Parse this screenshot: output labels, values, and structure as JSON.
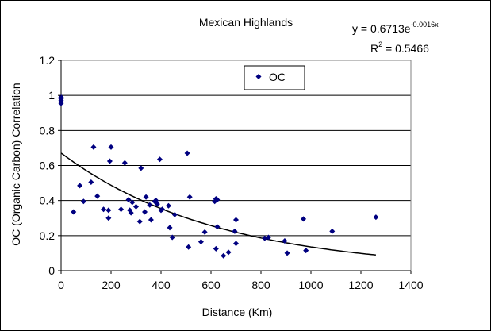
{
  "chart_data": {
    "type": "scatter",
    "title": "Mexican Highlands",
    "xlabel": "Distance (Km)",
    "ylabel": "OC (Organic Carbon) Correlation",
    "xlim": [
      0,
      1400
    ],
    "ylim": [
      0,
      1.2
    ],
    "x_ticks": [
      "0",
      "200",
      "400",
      "600",
      "800",
      "1000",
      "1200",
      "1400"
    ],
    "y_ticks": [
      "0",
      "0.2",
      "0.4",
      "0.6",
      "0.8",
      "1",
      "1.2"
    ],
    "grid": "horizontal major gridlines",
    "legend": {
      "position": "top-center",
      "entries": [
        "OC"
      ]
    },
    "marker_color": "#000080",
    "trendline": {
      "type": "exponential",
      "a": 0.6713,
      "b": -0.0016,
      "x_range": [
        0,
        1260
      ],
      "equation_base": "y = 0.6713e",
      "equation_exponent": "-0.0016x",
      "r2_label": "R",
      "r2_exponent": "2",
      "r2_value": " = 0.5466"
    },
    "series": [
      {
        "name": "OC",
        "points": [
          [
            0,
            0.99
          ],
          [
            0,
            0.98
          ],
          [
            0,
            0.97
          ],
          [
            0,
            0.955
          ],
          [
            50,
            0.335
          ],
          [
            75,
            0.485
          ],
          [
            90,
            0.395
          ],
          [
            120,
            0.505
          ],
          [
            130,
            0.705
          ],
          [
            145,
            0.425
          ],
          [
            170,
            0.35
          ],
          [
            190,
            0.345
          ],
          [
            190,
            0.3
          ],
          [
            195,
            0.625
          ],
          [
            200,
            0.705
          ],
          [
            240,
            0.35
          ],
          [
            255,
            0.615
          ],
          [
            270,
            0.405
          ],
          [
            275,
            0.345
          ],
          [
            280,
            0.33
          ],
          [
            285,
            0.39
          ],
          [
            300,
            0.365
          ],
          [
            315,
            0.28
          ],
          [
            320,
            0.585
          ],
          [
            335,
            0.335
          ],
          [
            340,
            0.42
          ],
          [
            355,
            0.375
          ],
          [
            360,
            0.29
          ],
          [
            375,
            0.395
          ],
          [
            380,
            0.4
          ],
          [
            385,
            0.38
          ],
          [
            395,
            0.635
          ],
          [
            400,
            0.345
          ],
          [
            405,
            0.35
          ],
          [
            430,
            0.37
          ],
          [
            435,
            0.245
          ],
          [
            445,
            0.19
          ],
          [
            455,
            0.32
          ],
          [
            505,
            0.67
          ],
          [
            510,
            0.135
          ],
          [
            515,
            0.42
          ],
          [
            560,
            0.165
          ],
          [
            575,
            0.22
          ],
          [
            615,
            0.395
          ],
          [
            620,
            0.41
          ],
          [
            622,
            0.405
          ],
          [
            625,
            0.405
          ],
          [
            620,
            0.125
          ],
          [
            625,
            0.25
          ],
          [
            650,
            0.085
          ],
          [
            670,
            0.105
          ],
          [
            695,
            0.225
          ],
          [
            700,
            0.29
          ],
          [
            700,
            0.155
          ],
          [
            815,
            0.185
          ],
          [
            830,
            0.19
          ],
          [
            895,
            0.17
          ],
          [
            905,
            0.1
          ],
          [
            970,
            0.295
          ],
          [
            980,
            0.115
          ],
          [
            1085,
            0.225
          ],
          [
            1260,
            0.305
          ]
        ]
      }
    ]
  }
}
